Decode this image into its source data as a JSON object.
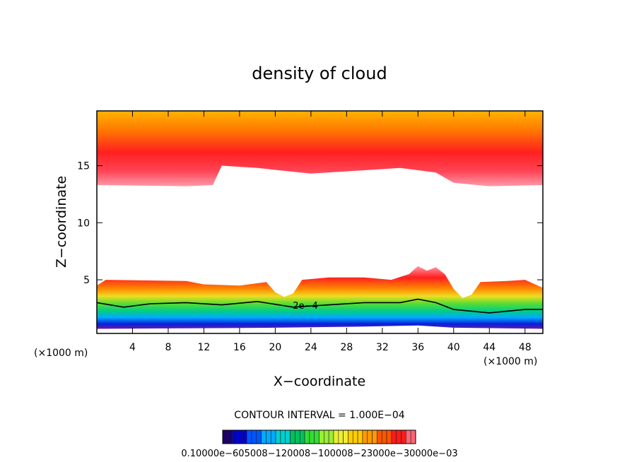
{
  "chart_data": {
    "type": "heatmap",
    "title": "density of cloud",
    "xlabel": "X−coordinate",
    "ylabel": "Z−coordinate",
    "x_unit_left": "(×1000 m)",
    "x_unit_right": "(×1000 m)",
    "xlim": [
      0,
      50
    ],
    "ylim": [
      0.3,
      19.8
    ],
    "x_ticks": [
      4,
      8,
      12,
      16,
      20,
      24,
      28,
      32,
      36,
      40,
      44,
      48
    ],
    "x_tick_labels": [
      "4",
      "8",
      "12",
      "16",
      "20",
      "24",
      "28",
      "32",
      "36",
      "40",
      "44",
      "48"
    ],
    "y_ticks": [
      5,
      10,
      15
    ],
    "y_tick_labels": [
      "5",
      "10",
      "15"
    ],
    "contour_interval_text": "CONTOUR INTERVAL = 1.000E−04",
    "contour_label": "2e−4",
    "colorbar_label_text": "0.10000e−605008−120008−100008−23000e−30000e−03",
    "colorbar_colors": [
      "#1a0066",
      "#0000cc",
      "#0055ff",
      "#00aaff",
      "#00d0d0",
      "#00c060",
      "#33dd33",
      "#99ee33",
      "#eeee33",
      "#ffcc00",
      "#ff9900",
      "#ff5500",
      "#ff1a1a",
      "#ff6677"
    ],
    "upper_layer": {
      "base": [
        [
          0,
          13.3
        ],
        [
          10,
          13.2
        ],
        [
          13,
          13.3
        ],
        [
          14,
          15
        ],
        [
          18,
          14.8
        ],
        [
          24,
          14.3
        ],
        [
          30,
          14.6
        ],
        [
          34,
          14.8
        ],
        [
          38,
          14.4
        ],
        [
          40,
          13.5
        ],
        [
          44,
          13.2
        ],
        [
          50,
          13.3
        ]
      ],
      "top": 19.8
    },
    "lower_layer": {
      "bottom": [
        [
          0,
          0.7
        ],
        [
          10,
          0.75
        ],
        [
          20,
          0.8
        ],
        [
          30,
          0.9
        ],
        [
          36,
          1.0
        ],
        [
          40,
          0.8
        ],
        [
          50,
          0.7
        ]
      ],
      "top": [
        [
          0,
          4.5
        ],
        [
          1,
          5
        ],
        [
          10,
          4.9
        ],
        [
          12,
          4.6
        ],
        [
          16,
          4.5
        ],
        [
          19,
          4.8
        ],
        [
          20,
          3.9
        ],
        [
          21,
          3.5
        ],
        [
          22,
          3.8
        ],
        [
          23,
          5
        ],
        [
          26,
          5.2
        ],
        [
          30,
          5.2
        ],
        [
          33,
          5
        ],
        [
          35,
          5.5
        ],
        [
          36,
          6.2
        ],
        [
          37,
          5.8
        ],
        [
          38,
          6.1
        ],
        [
          39,
          5.5
        ],
        [
          40,
          4.2
        ],
        [
          41,
          3.4
        ],
        [
          42,
          3.7
        ],
        [
          43,
          4.8
        ],
        [
          46,
          4.9
        ],
        [
          48,
          5
        ],
        [
          50,
          4.3
        ]
      ]
    },
    "contour_2e4": [
      [
        0,
        3
      ],
      [
        3,
        2.6
      ],
      [
        6,
        2.9
      ],
      [
        10,
        3
      ],
      [
        14,
        2.8
      ],
      [
        18,
        3.1
      ],
      [
        22,
        2.6
      ],
      [
        26,
        2.8
      ],
      [
        30,
        3
      ],
      [
        34,
        3
      ],
      [
        36,
        3.3
      ],
      [
        38,
        3
      ],
      [
        40,
        2.4
      ],
      [
        44,
        2.1
      ],
      [
        48,
        2.4
      ],
      [
        50,
        2.4
      ]
    ]
  }
}
